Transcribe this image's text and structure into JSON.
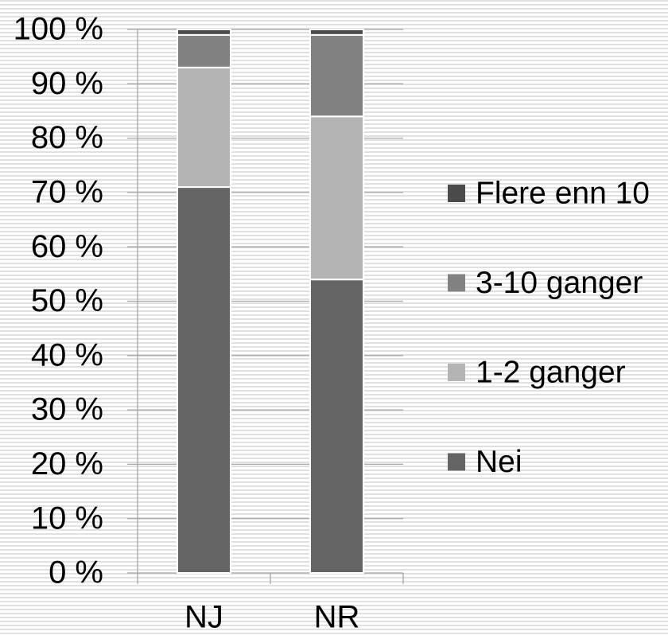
{
  "chart_data": {
    "type": "stacked_bar",
    "categories": [
      "NJ",
      "NR"
    ],
    "series": [
      {
        "name": "Nei",
        "color": "#646464",
        "values": [
          71,
          54
        ]
      },
      {
        "name": "1-2 ganger",
        "color": "#b4b4b4",
        "values": [
          22,
          30
        ]
      },
      {
        "name": "3-10 ganger",
        "color": "#828282",
        "values": [
          6,
          15
        ]
      },
      {
        "name": "Flere enn 10",
        "color": "#4b4b4b",
        "values": [
          1,
          1
        ]
      }
    ],
    "ylim": [
      0,
      100
    ],
    "yticks": [
      {
        "value": 0,
        "label": "0 %"
      },
      {
        "value": 10,
        "label": "10 %"
      },
      {
        "value": 20,
        "label": "20 %"
      },
      {
        "value": 30,
        "label": "30 %"
      },
      {
        "value": 40,
        "label": "40 %"
      },
      {
        "value": 50,
        "label": "50 %"
      },
      {
        "value": 60,
        "label": "60 %"
      },
      {
        "value": 70,
        "label": "70 %"
      },
      {
        "value": 80,
        "label": "80 %"
      },
      {
        "value": 90,
        "label": "90 %"
      },
      {
        "value": 100,
        "label": "100 %"
      }
    ],
    "grid": true,
    "legend": "right"
  }
}
